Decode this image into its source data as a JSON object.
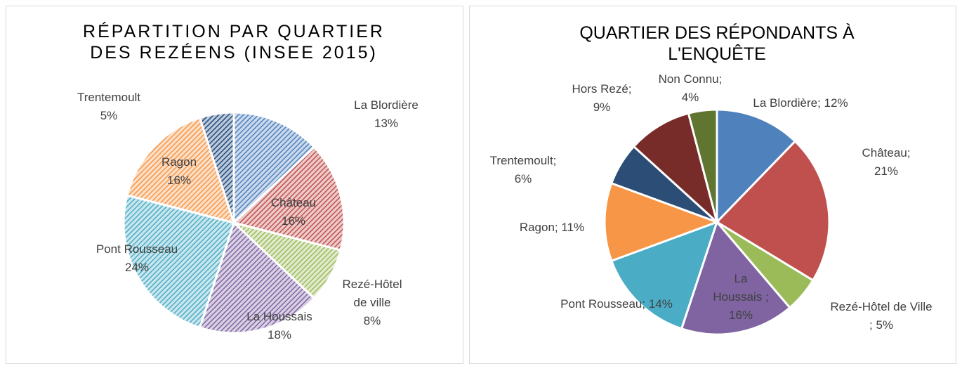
{
  "chart_data": [
    {
      "type": "pie",
      "title": "RÉPARTITION PAR QUARTIER DES REZÉENS (INSEE 2015)",
      "categories": [
        "La Blordière",
        "Château",
        "Rezé-Hôtel de ville",
        "La Houssais",
        "Pont Rousseau",
        "Ragon",
        "Trentemoult"
      ],
      "values": [
        13,
        16,
        8,
        18,
        24,
        16,
        5
      ],
      "value_labels": [
        "13%",
        "16%",
        "8%",
        "18%",
        "24%",
        "16%",
        "5%"
      ],
      "colors": [
        "#4f81bd",
        "#c0504d",
        "#9bbb59",
        "#8064a2",
        "#4bacc6",
        "#f79646",
        "#1f497d"
      ],
      "hatched": true
    },
    {
      "type": "pie",
      "title": "QUARTIER DES RÉPONDANTS À L'ENQUÊTE",
      "categories": [
        "La Blordière;",
        "Château;",
        "Rezé-Hôtel de Ville ;",
        "La Houssais ;",
        "Pont Rousseau;",
        "Ragon;",
        "Trentemoult;",
        "Hors Rezé;",
        "Non Connu;"
      ],
      "values": [
        12,
        21,
        5,
        16,
        14,
        11,
        6,
        9,
        4
      ],
      "value_labels": [
        "12%",
        "21%",
        "5%",
        "16%",
        "14%",
        "11%",
        "6%",
        "9%",
        "4%"
      ],
      "colors": [
        "#4f81bd",
        "#c0504d",
        "#9bbb59",
        "#8064a2",
        "#4bacc6",
        "#f79646",
        "#2c4d75",
        "#772c2a",
        "#5f7530"
      ],
      "hatched": false
    }
  ]
}
